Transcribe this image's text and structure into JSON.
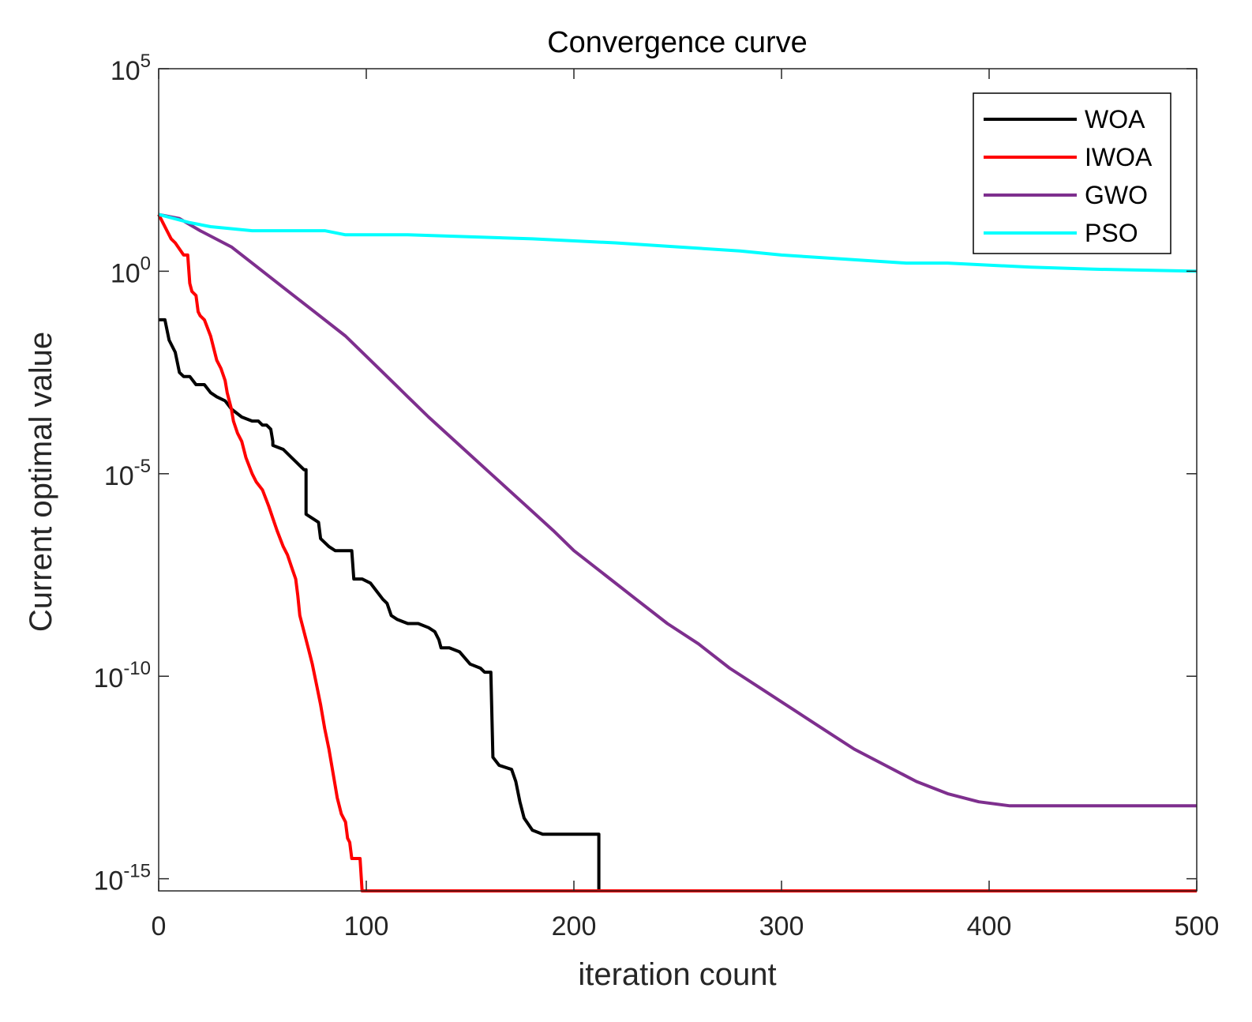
{
  "chart_data": {
    "type": "line",
    "title": "Convergence curve",
    "xlabel": "iteration count",
    "ylabel": "Current optimal value",
    "yscale": "log",
    "xlim": [
      0,
      500
    ],
    "ylim_exp": [
      -15.3,
      5
    ],
    "xticks": [
      0,
      100,
      200,
      300,
      400,
      500
    ],
    "xtick_labels": [
      "0",
      "100",
      "200",
      "300",
      "400",
      "500"
    ],
    "yticks": [
      {
        "exp": 5,
        "base": "10",
        "sup": "5"
      },
      {
        "exp": 0,
        "base": "10",
        "sup": "0"
      },
      {
        "exp": -5,
        "base": "10",
        "sup": "-5"
      },
      {
        "exp": -10,
        "base": "10",
        "sup": "-10"
      },
      {
        "exp": -15,
        "base": "10",
        "sup": "-15"
      }
    ],
    "legend_position": "top-right",
    "series": [
      {
        "name": "WOA",
        "color": "#000000",
        "points": [
          [
            0,
            -1.2
          ],
          [
            3,
            -1.2
          ],
          [
            5,
            -1.7
          ],
          [
            8,
            -2
          ],
          [
            10,
            -2.5
          ],
          [
            12,
            -2.6
          ],
          [
            15,
            -2.6
          ],
          [
            18,
            -2.8
          ],
          [
            22,
            -2.8
          ],
          [
            25,
            -3
          ],
          [
            28,
            -3.1
          ],
          [
            32,
            -3.2
          ],
          [
            35,
            -3.4
          ],
          [
            40,
            -3.6
          ],
          [
            45,
            -3.7
          ],
          [
            48,
            -3.7
          ],
          [
            50,
            -3.8
          ],
          [
            52,
            -3.8
          ],
          [
            54,
            -3.9
          ],
          [
            55,
            -4.2
          ],
          [
            55,
            -4.3
          ],
          [
            60,
            -4.4
          ],
          [
            62,
            -4.5
          ],
          [
            64,
            -4.6
          ],
          [
            66,
            -4.7
          ],
          [
            68,
            -4.8
          ],
          [
            70,
            -4.9
          ],
          [
            71,
            -4.9
          ],
          [
            71,
            -6
          ],
          [
            74,
            -6.1
          ],
          [
            77,
            -6.2
          ],
          [
            78,
            -6.6
          ],
          [
            82,
            -6.8
          ],
          [
            85,
            -6.9
          ],
          [
            90,
            -6.9
          ],
          [
            93,
            -6.9
          ],
          [
            94,
            -7.6
          ],
          [
            98,
            -7.6
          ],
          [
            102,
            -7.7
          ],
          [
            105,
            -7.9
          ],
          [
            108,
            -8.1
          ],
          [
            110,
            -8.2
          ],
          [
            112,
            -8.5
          ],
          [
            115,
            -8.6
          ],
          [
            120,
            -8.7
          ],
          [
            125,
            -8.7
          ],
          [
            130,
            -8.8
          ],
          [
            133,
            -8.9
          ],
          [
            135,
            -9.1
          ],
          [
            136,
            -9.3
          ],
          [
            140,
            -9.3
          ],
          [
            145,
            -9.4
          ],
          [
            150,
            -9.7
          ],
          [
            155,
            -9.8
          ],
          [
            157,
            -9.9
          ],
          [
            160,
            -9.9
          ],
          [
            161,
            -12
          ],
          [
            164,
            -12.2
          ],
          [
            170,
            -12.3
          ],
          [
            172,
            -12.6
          ],
          [
            174,
            -13.1
          ],
          [
            176,
            -13.5
          ],
          [
            180,
            -13.8
          ],
          [
            185,
            -13.9
          ],
          [
            195,
            -13.9
          ],
          [
            212,
            -13.9
          ],
          [
            212,
            -15.3
          ]
        ]
      },
      {
        "name": "IWOA",
        "color": "#ff0000",
        "points": [
          [
            0,
            1.4
          ],
          [
            2,
            1.2
          ],
          [
            4,
            1
          ],
          [
            6,
            0.8
          ],
          [
            8,
            0.7
          ],
          [
            12,
            0.4
          ],
          [
            14,
            0.4
          ],
          [
            15,
            -0.3
          ],
          [
            16,
            -0.5
          ],
          [
            18,
            -0.6
          ],
          [
            19,
            -1
          ],
          [
            20,
            -1.1
          ],
          [
            22,
            -1.2
          ],
          [
            25,
            -1.6
          ],
          [
            28,
            -2.2
          ],
          [
            30,
            -2.4
          ],
          [
            32,
            -2.7
          ],
          [
            33,
            -3
          ],
          [
            35,
            -3.4
          ],
          [
            36,
            -3.7
          ],
          [
            38,
            -4
          ],
          [
            40,
            -4.2
          ],
          [
            42,
            -4.6
          ],
          [
            45,
            -5
          ],
          [
            47,
            -5.2
          ],
          [
            50,
            -5.4
          ],
          [
            53,
            -5.8
          ],
          [
            55,
            -6.1
          ],
          [
            57,
            -6.4
          ],
          [
            60,
            -6.8
          ],
          [
            62,
            -7
          ],
          [
            64,
            -7.3
          ],
          [
            66,
            -7.6
          ],
          [
            67,
            -8
          ],
          [
            68,
            -8.5
          ],
          [
            70,
            -8.9
          ],
          [
            72,
            -9.3
          ],
          [
            74,
            -9.7
          ],
          [
            76,
            -10.2
          ],
          [
            78,
            -10.7
          ],
          [
            80,
            -11.3
          ],
          [
            82,
            -11.8
          ],
          [
            85,
            -12.7
          ],
          [
            86,
            -13
          ],
          [
            88,
            -13.4
          ],
          [
            90,
            -13.6
          ],
          [
            91,
            -14
          ],
          [
            92,
            -14.1
          ],
          [
            93,
            -14.5
          ],
          [
            97,
            -14.5
          ],
          [
            98,
            -15.3
          ],
          [
            500,
            -15.3
          ]
        ]
      },
      {
        "name": "GWO",
        "color": "#7e2f8e",
        "points": [
          [
            0,
            1.4
          ],
          [
            10,
            1.3
          ],
          [
            20,
            1
          ],
          [
            35,
            0.6
          ],
          [
            45,
            0.2
          ],
          [
            60,
            -0.4
          ],
          [
            75,
            -1
          ],
          [
            90,
            -1.6
          ],
          [
            100,
            -2.1
          ],
          [
            110,
            -2.6
          ],
          [
            120,
            -3.1
          ],
          [
            130,
            -3.6
          ],
          [
            145,
            -4.3
          ],
          [
            160,
            -5
          ],
          [
            175,
            -5.7
          ],
          [
            190,
            -6.4
          ],
          [
            200,
            -6.9
          ],
          [
            215,
            -7.5
          ],
          [
            230,
            -8.1
          ],
          [
            245,
            -8.7
          ],
          [
            260,
            -9.2
          ],
          [
            275,
            -9.8
          ],
          [
            290,
            -10.3
          ],
          [
            305,
            -10.8
          ],
          [
            320,
            -11.3
          ],
          [
            335,
            -11.8
          ],
          [
            350,
            -12.2
          ],
          [
            365,
            -12.6
          ],
          [
            380,
            -12.9
          ],
          [
            395,
            -13.1
          ],
          [
            410,
            -13.2
          ],
          [
            420,
            -13.2
          ],
          [
            500,
            -13.2
          ]
        ]
      },
      {
        "name": "PSO",
        "color": "#00ffff",
        "points": [
          [
            0,
            1.4
          ],
          [
            15,
            1.2
          ],
          [
            25,
            1.1
          ],
          [
            45,
            1
          ],
          [
            80,
            1
          ],
          [
            90,
            0.9
          ],
          [
            120,
            0.9
          ],
          [
            180,
            0.8
          ],
          [
            220,
            0.7
          ],
          [
            250,
            0.6
          ],
          [
            280,
            0.5
          ],
          [
            300,
            0.4
          ],
          [
            330,
            0.3
          ],
          [
            360,
            0.2
          ],
          [
            380,
            0.2
          ],
          [
            420,
            0.1
          ],
          [
            450,
            0.05
          ],
          [
            500,
            0
          ]
        ]
      }
    ]
  }
}
